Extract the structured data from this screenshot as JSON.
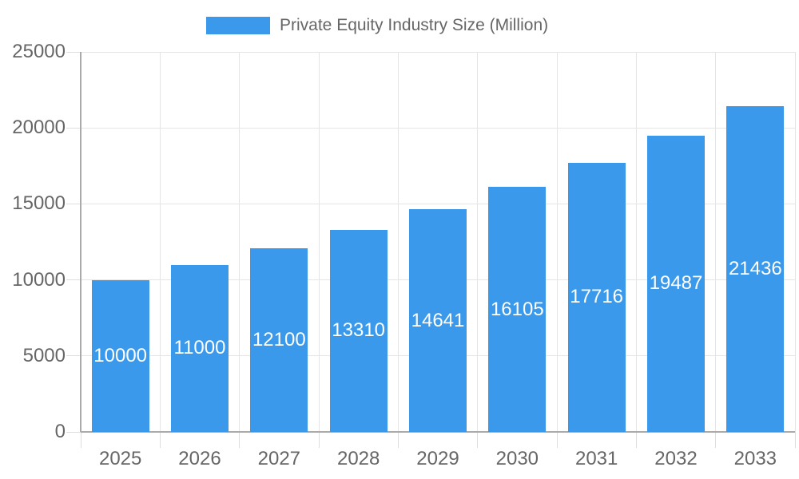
{
  "chart_data": {
    "type": "bar",
    "title": "",
    "legend": {
      "label": "Private Equity Industry Size (Million)",
      "position": "top-center"
    },
    "categories": [
      "2025",
      "2026",
      "2027",
      "2028",
      "2029",
      "2030",
      "2031",
      "2032",
      "2033"
    ],
    "series": [
      {
        "name": "Private Equity Industry Size (Million)",
        "values": [
          10000,
          11000,
          12100,
          13310,
          14641,
          16105,
          17716,
          19487,
          21436
        ]
      }
    ],
    "value_labels": {
      "visible": true,
      "position": "inside-center",
      "color": "#ffffff"
    },
    "xlabel": "",
    "ylabel": "",
    "ylim": [
      0,
      25000
    ],
    "yticks": [
      0,
      5000,
      10000,
      15000,
      20000,
      25000
    ],
    "grid": {
      "horizontal": true,
      "vertical": true
    },
    "colors": {
      "bar": "#3B99EC",
      "gridline": "#e5e5e5",
      "tick": "#dedede",
      "axis": "#aaaaaa",
      "tick_label": "#666666",
      "legend_label": "#666666",
      "background": "#ffffff"
    }
  }
}
